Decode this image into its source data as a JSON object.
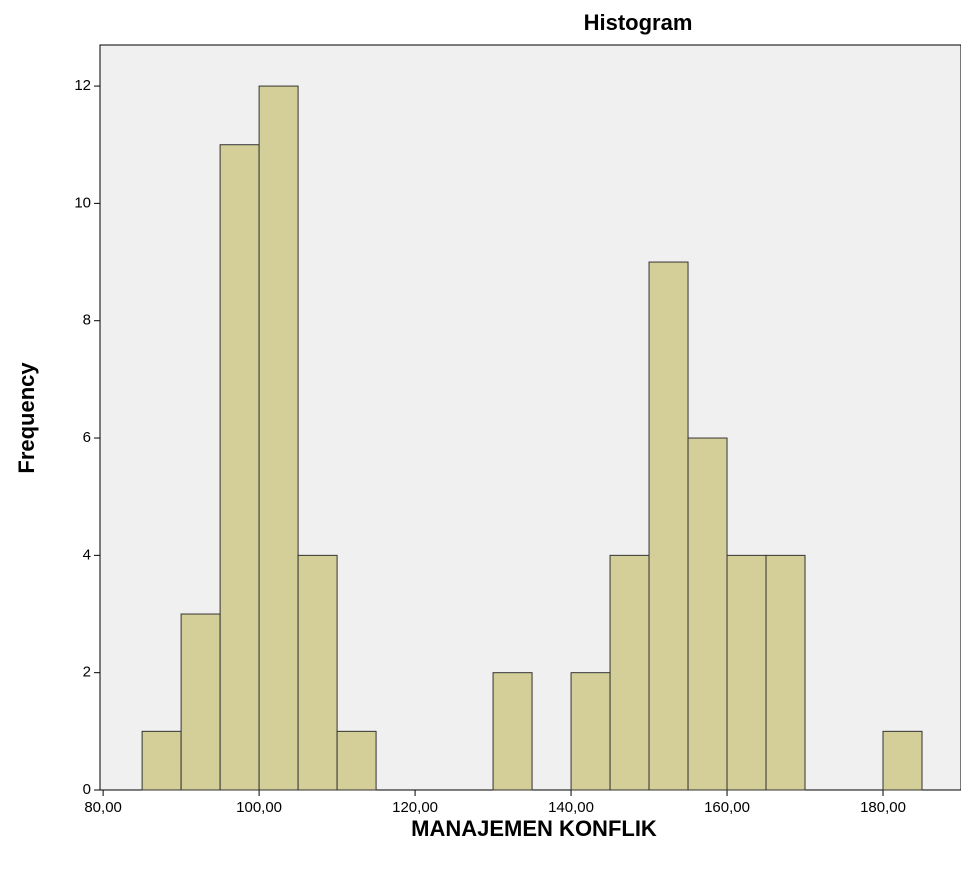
{
  "chart_data": {
    "type": "histogram",
    "title": "Histogram",
    "x_label": "MANAJEMEN KONFLIK",
    "y_label": "Frequency",
    "bins": [
      85,
      90,
      95,
      100,
      105,
      110,
      115,
      120,
      125,
      130,
      135,
      140,
      145,
      150,
      155,
      160,
      165,
      170,
      175,
      180,
      185
    ],
    "values": [
      1,
      3,
      11,
      12,
      4,
      1,
      0,
      0,
      0,
      2,
      0,
      2,
      4,
      9,
      6,
      4,
      4,
      0,
      0,
      1
    ],
    "color": "#d4cf98",
    "xlim": [
      79.6,
      190
    ],
    "ylim": [
      0,
      12.7
    ],
    "xticks": [
      {
        "value": 80,
        "label": "80,00"
      },
      {
        "value": 100,
        "label": "100,00"
      },
      {
        "value": 120,
        "label": "120,00"
      },
      {
        "value": 140,
        "label": "140,00"
      },
      {
        "value": 160,
        "label": "160,00"
      },
      {
        "value": 180,
        "label": "180,00"
      }
    ],
    "yticks": [
      0,
      2,
      4,
      6,
      8,
      10,
      12
    ]
  }
}
